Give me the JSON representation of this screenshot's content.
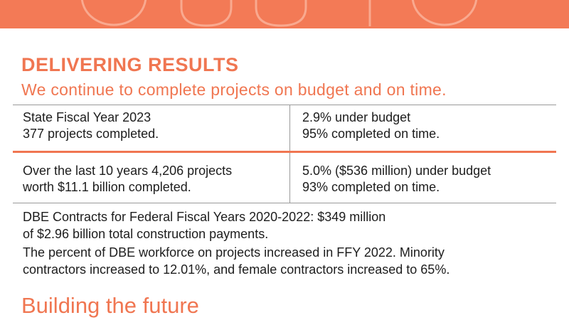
{
  "heading": "DELIVERING RESULTS",
  "subheading": "We continue to complete projects on budget and on time.",
  "table": {
    "rows": [
      [
        [
          "State Fiscal Year 2023",
          "377 projects completed."
        ],
        [
          "2.9% under budget",
          "95% completed on time."
        ]
      ],
      [
        [
          "Over the last 10 years 4,206 projects",
          "worth $11.1 billion completed."
        ],
        [
          "5.0% ($536 million) under budget",
          "93% completed on time."
        ]
      ]
    ]
  },
  "paragraphs": [
    [
      "DBE Contracts for Federal Fiscal Years 2020-2022: $349 million",
      "of $2.96 billion total construction payments."
    ],
    [
      "The percent of DBE workforce on projects increased in FFY 2022. Minority",
      "contractors increased to 12.01%, and female contractors increased to 65%."
    ]
  ],
  "next_heading": "Building the future"
}
